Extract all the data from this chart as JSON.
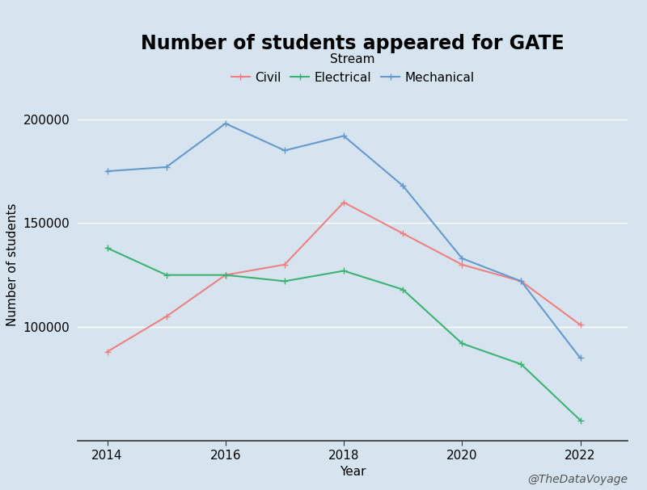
{
  "title": "Number of students appeared for GATE",
  "xlabel": "Year",
  "ylabel": "Number of students",
  "background_color": "#d6e4f0",
  "legend_title": "Stream",
  "watermark": "@TheDataVoyage",
  "years": [
    2014,
    2015,
    2016,
    2017,
    2018,
    2019,
    2020,
    2021,
    2022
  ],
  "civil": [
    88000,
    105000,
    125000,
    130000,
    160000,
    145000,
    130000,
    122000,
    101000
  ],
  "electrical": [
    138000,
    125000,
    125000,
    122000,
    127000,
    118000,
    92000,
    82000,
    55000
  ],
  "mechanical": [
    175000,
    177000,
    198000,
    185000,
    192000,
    168000,
    133000,
    122000,
    85000
  ],
  "civil_color": "#f08080",
  "electrical_color": "#3cb371",
  "mechanical_color": "#6699cc",
  "line_marker": "+",
  "marker_size": 6,
  "line_width": 1.5,
  "title_fontsize": 17,
  "label_fontsize": 11,
  "tick_fontsize": 11,
  "legend_fontsize": 11,
  "ylim_bottom": 45000,
  "ylim_top": 215000,
  "yticks": [
    100000,
    150000,
    200000
  ],
  "xticks": [
    2014,
    2016,
    2018,
    2020,
    2022
  ],
  "grid_color": "#ffffff",
  "grid_linewidth": 1.0,
  "watermark_fontsize": 10,
  "watermark_color": "#555555"
}
